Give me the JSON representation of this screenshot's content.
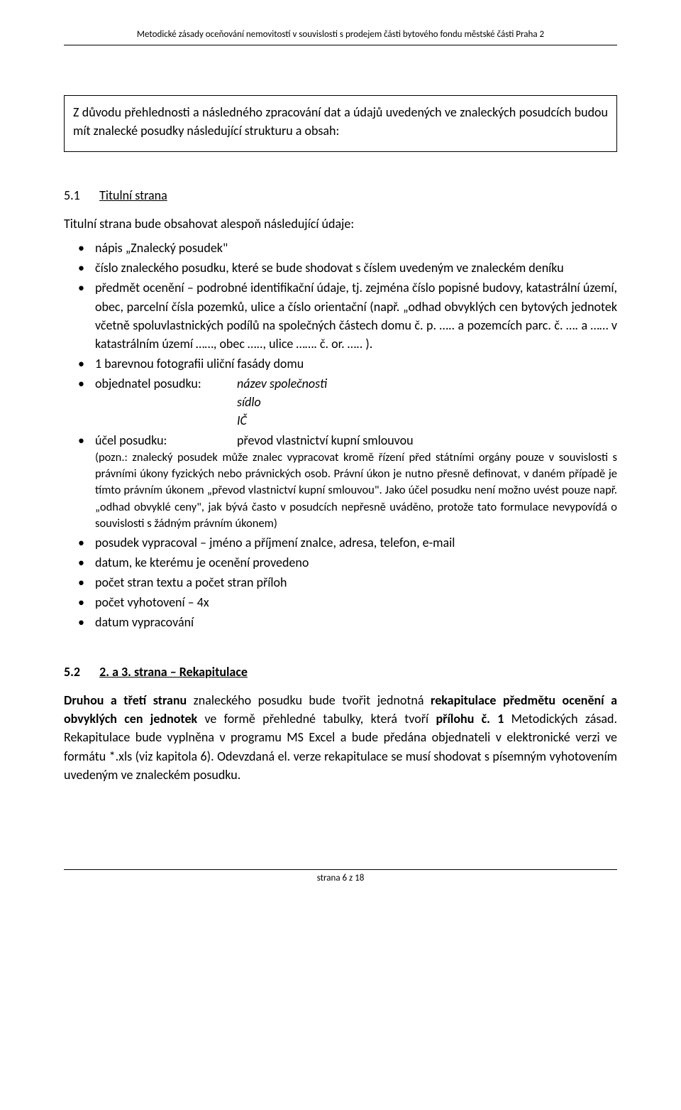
{
  "header": "Metodické zásady oceňování nemovitostí v souvislosti s prodejem části bytového fondu městské části Praha 2",
  "introBox": "Z důvodu přehlednosti a následného zpracování dat a údajů uvedených ve znaleckých posudcích budou mít znalecké posudky následující strukturu a obsah:",
  "section51": {
    "num": "5.1",
    "title": "Titulní strana",
    "lead": "Titulní strana bude obsahovat alespoň následující údaje:",
    "bullets": {
      "b0": "nápis „Znalecký posudek\"",
      "b1": "číslo znaleckého posudku, které se bude shodovat s číslem uvedeným ve znaleckém deníku",
      "b2": "předmět ocenění – podrobné identifikační údaje, tj. zejména číslo popisné budovy, katastrální území, obec, parcelní čísla pozemků, ulice a číslo orientační (např. „odhad obvyklých cen bytových jednotek včetně spoluvlastnických podílů na společných částech domu č. p. ….. a pozemcích parc. č. …. a …… v katastrálním území ……, obec ….., ulice ……. č. or. ….. ).",
      "b3": "1 barevnou fotografii uliční fasády domu",
      "b4_label": "objednatel posudku:",
      "b4_v1": "název společnosti",
      "b4_v2": "sídlo",
      "b4_v3": "IČ",
      "b5_label": "účel posudku:",
      "b5_value": "převod vlastnictví kupní smlouvou",
      "b5_note": "(pozn.: znalecký posudek může znalec vypracovat kromě řízení před státními orgány pouze v souvislosti s právními úkony fyzických nebo právnických osob. Právní úkon je nutno přesně definovat, v daném případě je tímto právním úkonem „převod vlastnictví kupní smlouvou\". Jako účel posudku není možno uvést pouze např. „odhad obvyklé ceny\", jak bývá často v posudcích nepřesně uváděno, protože tato formulace nevypovídá o souvislosti s žádným právním úkonem)",
      "b6": "posudek vypracoval – jméno a příjmení znalce, adresa, telefon, e-mail",
      "b7": "datum, ke kterému je ocenění provedeno",
      "b8": "počet stran textu a počet stran příloh",
      "b9": "počet vyhotovení – 4x",
      "b10": "datum vypracování"
    }
  },
  "section52": {
    "num": "5.2",
    "title": "2. a 3. strana – Rekapitulace",
    "body_b1": "Druhou a třetí stranu",
    "body_t1": " znaleckého posudku bude tvořit jednotná ",
    "body_b2": "rekapitulace předmětu ocenění a obvyklých cen jednotek",
    "body_t2": " ve formě přehledné tabulky, která tvoří ",
    "body_b3": "přílohu č. 1",
    "body_t3": " Metodických zásad. Rekapitulace bude vyplněna v programu MS Excel a bude předána objednateli v elektronické verzi ve formátu *.xls (viz kapitola 6). Odevzdaná el. verze rekapitulace se musí shodovat s písemným vyhotovením uvedeným ve znaleckém posudku."
  },
  "footer": "strana 6 z 18"
}
